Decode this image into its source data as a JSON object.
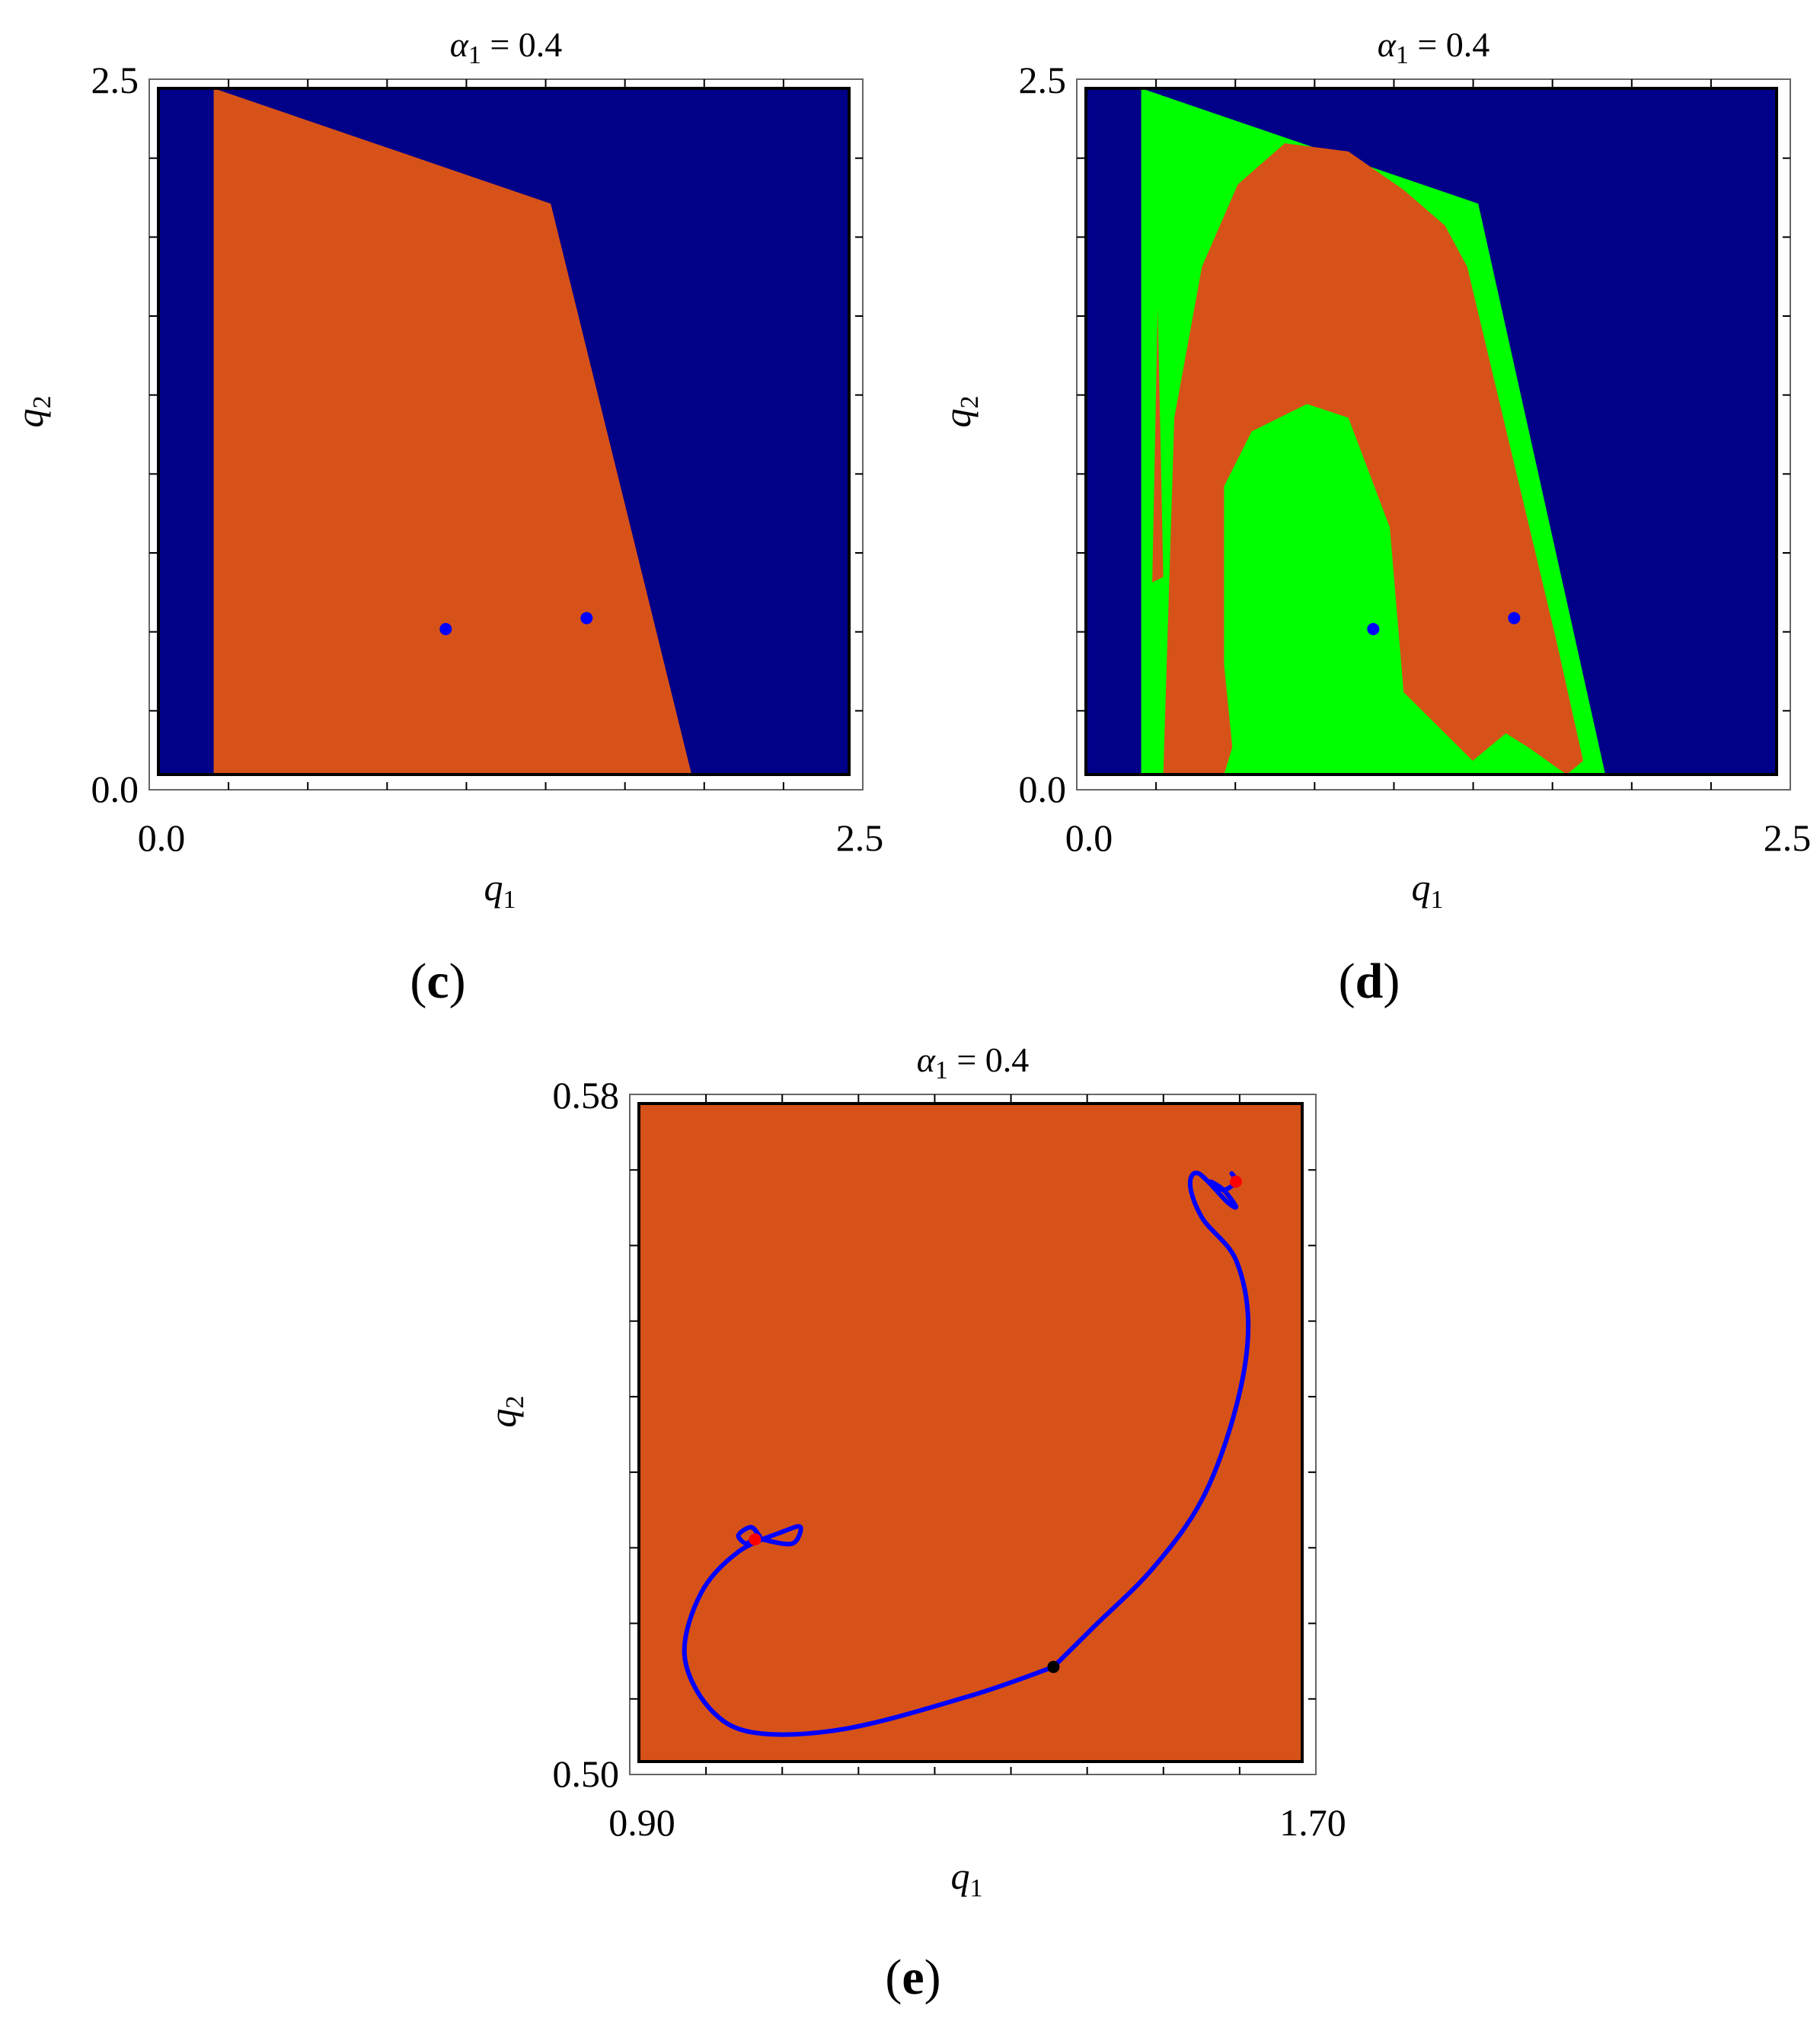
{
  "chart_data": [
    {
      "panel": "c",
      "type": "area",
      "title": "α1 = 0.4",
      "xlabel": "q1",
      "ylabel": "q2",
      "xlim": [
        0.0,
        2.5
      ],
      "ylim": [
        0.0,
        2.5
      ],
      "x_ticks": [
        "0.0",
        "2.5"
      ],
      "y_ticks": [
        "0.0",
        "2.5"
      ],
      "colors": {
        "background": "#000088",
        "orange": "#d75219",
        "blue_point": "#0000ff"
      },
      "regions": [
        {
          "color": "#d75219",
          "polygon": [
            [
              0.2,
              2.5
            ],
            [
              1.42,
              2.08
            ],
            [
              1.93,
              0.0
            ],
            [
              0.2,
              0.0
            ]
          ]
        }
      ],
      "points": [
        {
          "x": 1.04,
          "y": 0.53,
          "color": "#0000ff"
        },
        {
          "x": 1.55,
          "y": 0.57,
          "color": "#0000ff"
        }
      ]
    },
    {
      "panel": "d",
      "type": "area",
      "title": "α1 = 0.4",
      "xlabel": "q1",
      "ylabel": "q2",
      "xlim": [
        0.0,
        2.5
      ],
      "ylim": [
        0.0,
        2.5
      ],
      "x_ticks": [
        "0.0",
        "2.5"
      ],
      "y_ticks": [
        "0.0",
        "2.5"
      ],
      "colors": {
        "background": "#000088",
        "orange": "#d75219",
        "green": "#00ff00",
        "blue_point": "#0000ff"
      },
      "regions": [
        {
          "color": "#00ff00",
          "polygon": [
            [
              0.2,
              2.5
            ],
            [
              1.42,
              2.08
            ],
            [
              1.88,
              0.0
            ],
            [
              0.2,
              0.0
            ]
          ]
        },
        {
          "color": "#d75219",
          "polygon": [
            [
              0.28,
              0.0
            ],
            [
              0.32,
              1.3
            ],
            [
              0.42,
              1.85
            ],
            [
              0.55,
              2.15
            ],
            [
              0.72,
              2.3
            ],
            [
              0.95,
              2.27
            ],
            [
              1.15,
              2.13
            ],
            [
              1.3,
              2.0
            ],
            [
              1.38,
              1.85
            ],
            [
              1.7,
              0.5
            ],
            [
              1.8,
              0.05
            ],
            [
              1.74,
              0.0
            ],
            [
              1.6,
              0.1
            ],
            [
              1.52,
              0.15
            ],
            [
              1.4,
              0.05
            ],
            [
              1.25,
              0.2
            ],
            [
              1.15,
              0.3
            ],
            [
              1.1,
              0.9
            ],
            [
              0.95,
              1.3
            ],
            [
              0.8,
              1.35
            ],
            [
              0.6,
              1.25
            ],
            [
              0.5,
              1.05
            ],
            [
              0.5,
              0.4
            ],
            [
              0.53,
              0.1
            ],
            [
              0.5,
              0.0
            ]
          ]
        },
        {
          "color": "#d75219",
          "polygon": [
            [
              0.24,
              0.7
            ],
            [
              0.26,
              1.7
            ],
            [
              0.28,
              0.72
            ]
          ]
        }
      ],
      "points": [
        {
          "x": 1.04,
          "y": 0.53,
          "color": "#0000ff"
        },
        {
          "x": 1.55,
          "y": 0.57,
          "color": "#0000ff"
        }
      ]
    },
    {
      "panel": "e",
      "type": "line",
      "title": "α1 = 0.4",
      "xlabel": "q1",
      "ylabel": "q2",
      "xlim": [
        0.9,
        1.7
      ],
      "ylim": [
        0.5,
        0.58
      ],
      "x_ticks": [
        "0.90",
        "1.70"
      ],
      "y_ticks": [
        "0.50",
        "0.58"
      ],
      "colors": {
        "background": "#d75219",
        "trajectory": "#0000ff",
        "start_point": "#000000",
        "equilibrium": "#ff0000"
      },
      "series": [
        {
          "x": [
            1.4,
            1.45,
            1.52,
            1.58,
            1.62,
            1.635,
            1.62,
            1.58,
            1.565,
            1.575,
            1.61,
            1.62,
            1.605,
            1.59,
            1.605,
            1.62,
            1.615
          ],
          "y": [
            0.5115,
            0.5165,
            0.5235,
            0.532,
            0.543,
            0.553,
            0.561,
            0.566,
            0.57,
            0.5715,
            0.568,
            0.5675,
            0.5695,
            0.5705,
            0.5695,
            0.5705,
            0.5715
          ]
        },
        {
          "x": [
            1.4,
            1.3,
            1.15,
            1.04,
            0.985,
            0.955,
            0.975,
            1.02,
            1.075,
            1.095,
            1.085,
            1.05,
            1.045,
            1.035,
            1.02,
            1.03,
            1.04
          ],
          "y": [
            0.5115,
            0.508,
            0.504,
            0.5035,
            0.5065,
            0.513,
            0.5205,
            0.5255,
            0.528,
            0.5285,
            0.5265,
            0.527,
            0.5275,
            0.5285,
            0.5275,
            0.5265,
            0.5275
          ]
        }
      ],
      "points": [
        {
          "x": 1.4,
          "y": 0.5115,
          "color": "#000000"
        },
        {
          "x": 1.04,
          "y": 0.527,
          "color": "#ff0000"
        },
        {
          "x": 1.62,
          "y": 0.5705,
          "color": "#ff0000"
        }
      ]
    }
  ],
  "labels": [
    "(c)",
    "(d)",
    "(e)"
  ]
}
